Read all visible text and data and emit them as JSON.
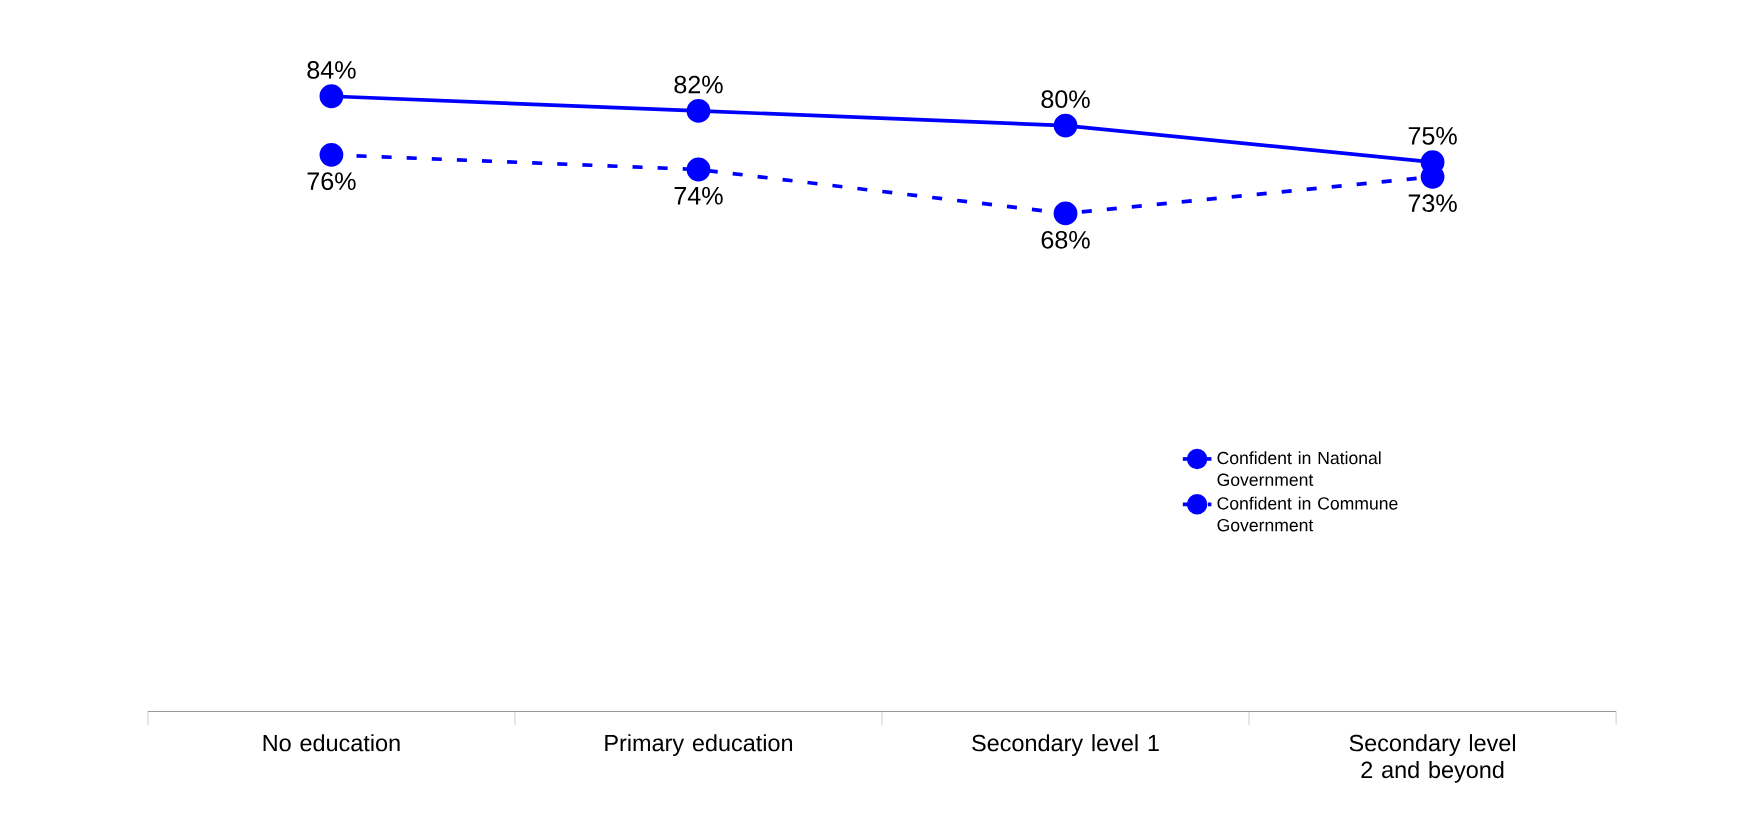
{
  "chart_data": {
    "type": "line",
    "categories": [
      "No education",
      "Primary education",
      "Secondary level 1",
      "Secondary level 2 and beyond"
    ],
    "series": [
      {
        "name": "Confident in National Government",
        "color": "#0000ff",
        "values": [
          84,
          82,
          80,
          75
        ],
        "value_labels": [
          "84%",
          "82%",
          "80%",
          "75%"
        ],
        "line_style": "solid"
      },
      {
        "name": "Confident in Commune Government",
        "color": "#0000ff",
        "values": [
          76,
          74,
          68,
          73
        ],
        "value_labels": [
          "76%",
          "74%",
          "68%",
          "73%"
        ],
        "line_style": "dashed"
      }
    ],
    "marker": "circle",
    "grid": false,
    "legend": "right"
  }
}
